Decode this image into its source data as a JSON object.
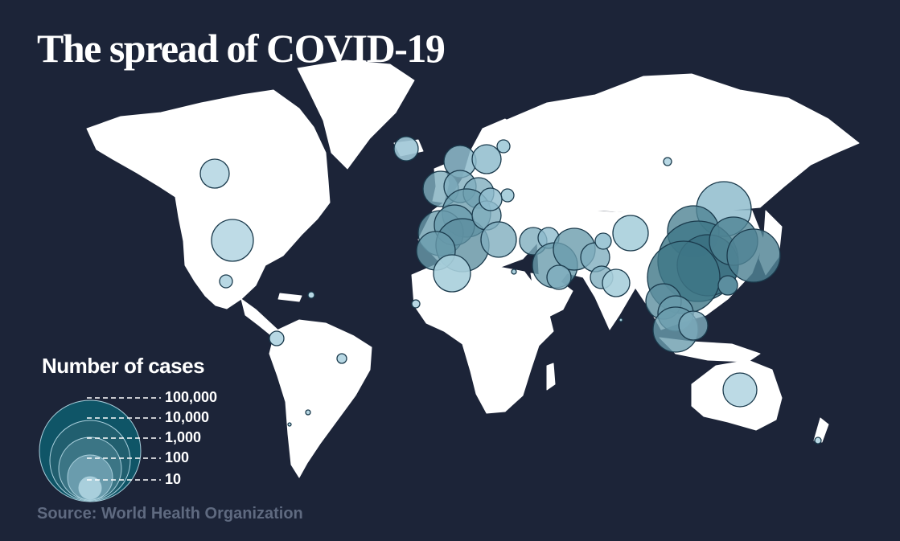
{
  "title": "The spread of COVID-19",
  "legend": {
    "title": "Number of cases",
    "levels": [
      {
        "label": "100,000",
        "value": 100000
      },
      {
        "label": "10,000",
        "value": 10000
      },
      {
        "label": "1,000",
        "value": 1000
      },
      {
        "label": "100",
        "value": 100
      },
      {
        "label": "10",
        "value": 10
      }
    ]
  },
  "source": "Source: World Health Organization",
  "colors": {
    "background": "#1c2438",
    "land": "#ffffff",
    "bubble_fill": "#a9cfdc",
    "bubble_fill_dense": "#3f7787",
    "bubble_stroke": "#1a3a4c",
    "legend_bubble_dark": "#0f5567",
    "source_text": "#5f6a80"
  }
}
